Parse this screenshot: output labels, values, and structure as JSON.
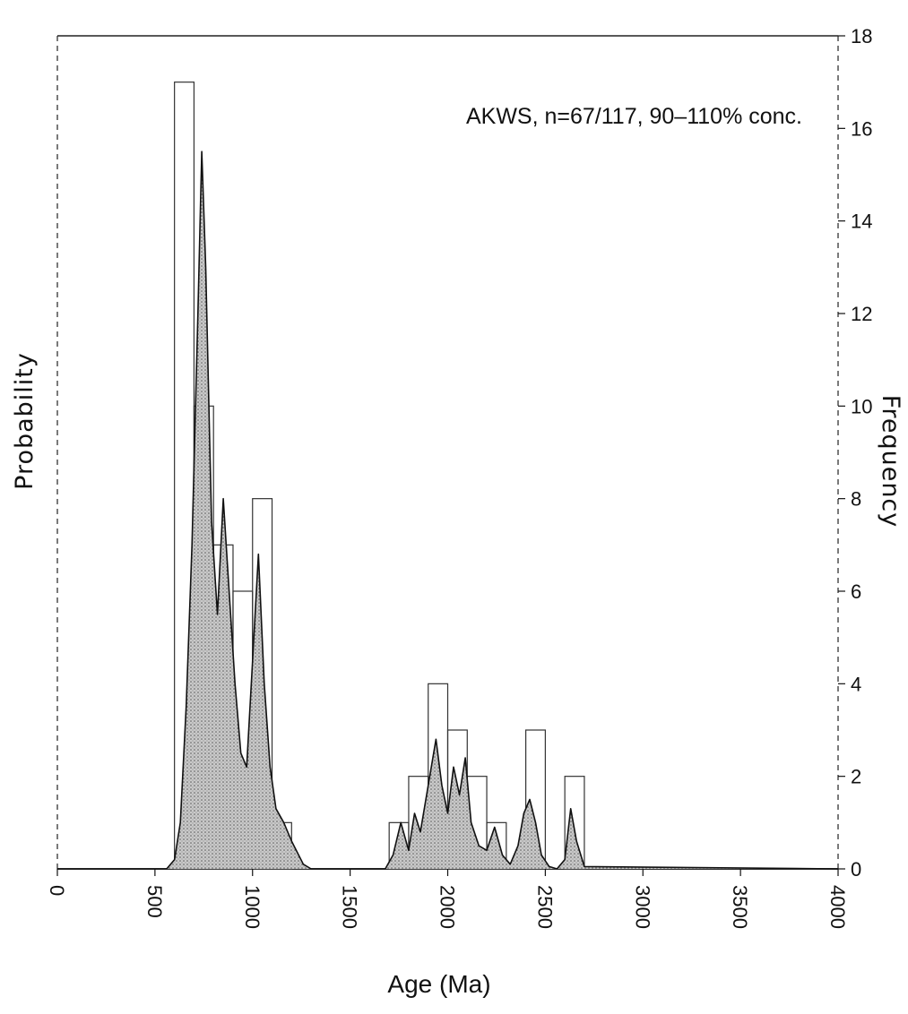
{
  "chart_data": {
    "type": "bar",
    "title": "AKWS, n=67/117, 90–110% conc.",
    "xlabel": "Age (Ma)",
    "ylabel_left": "Probability",
    "ylabel_right": "Frequency",
    "xlim": [
      0,
      4000
    ],
    "ylim": [
      0,
      18
    ],
    "x_ticks": [
      "0",
      "500",
      "1000",
      "1500",
      "2000",
      "2500",
      "3000",
      "3500",
      "4000"
    ],
    "y_ticks": [
      "0",
      "2",
      "4",
      "6",
      "8",
      "10",
      "12",
      "14",
      "16",
      "18"
    ],
    "bin_width": 100,
    "histogram": {
      "bin_starts": [
        600,
        700,
        800,
        900,
        1000,
        1100,
        1700,
        1800,
        1900,
        2000,
        2100,
        2200,
        2400,
        2600
      ],
      "frequency": [
        17,
        10,
        7,
        6,
        8,
        1,
        1,
        2,
        4,
        3,
        2,
        1,
        3,
        2
      ]
    },
    "probability_curve": {
      "x": [
        0,
        560,
        600,
        630,
        660,
        690,
        720,
        740,
        760,
        790,
        820,
        850,
        880,
        910,
        940,
        970,
        1000,
        1030,
        1060,
        1090,
        1120,
        1160,
        1200,
        1260,
        1300,
        1680,
        1720,
        1760,
        1800,
        1830,
        1860,
        1900,
        1940,
        1970,
        2000,
        2030,
        2060,
        2090,
        2120,
        2160,
        2200,
        2240,
        2280,
        2320,
        2360,
        2390,
        2420,
        2450,
        2480,
        2520,
        2560,
        2600,
        2630,
        2660,
        2700,
        4000
      ],
      "y": [
        0,
        0,
        0.2,
        1.0,
        3.5,
        7.0,
        12.0,
        15.5,
        13.0,
        7.5,
        5.5,
        8.0,
        6.0,
        4.0,
        2.5,
        2.2,
        4.5,
        6.8,
        4.0,
        2.2,
        1.3,
        1.0,
        0.6,
        0.1,
        0,
        0,
        0.3,
        1.0,
        0.4,
        1.2,
        0.8,
        1.8,
        2.8,
        1.8,
        1.2,
        2.2,
        1.6,
        2.4,
        1.0,
        0.5,
        0.4,
        0.9,
        0.3,
        0.1,
        0.5,
        1.2,
        1.5,
        1.0,
        0.3,
        0.05,
        0,
        0.2,
        1.3,
        0.6,
        0.05,
        0
      ]
    }
  }
}
